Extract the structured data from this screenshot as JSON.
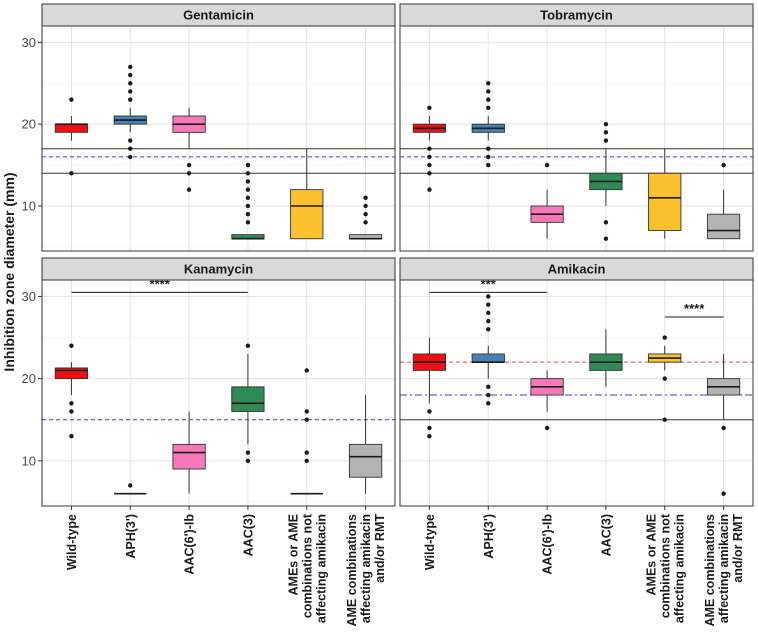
{
  "chart_data": {
    "type": "boxplot",
    "ylabel": "Inhibition zone diameter (mm)",
    "ylim": [
      4.5,
      32
    ],
    "yticks": [
      10,
      20,
      30
    ],
    "grid": true,
    "categories": [
      "Wild-type",
      "APH(3')",
      "AAC(6')-Ib",
      "AAC(3)",
      "AMEs or AME combinations not affecting amikacin",
      "AME combinations affecting amikacin and/or RMT"
    ],
    "category_label_lines": [
      [
        "Wild-type"
      ],
      [
        "APH(3')"
      ],
      [
        "AAC(6')-Ib"
      ],
      [
        "AAC(3)"
      ],
      [
        "AMEs or AME",
        "combinations not",
        "affecting amikacin"
      ],
      [
        "AME combinations",
        "affecting amikacin",
        "and/or RMT"
      ]
    ],
    "category_colors": [
      "#ee1111",
      "#4682b4",
      "#f778b8",
      "#2e8b57",
      "#fbc02d",
      "#b3b3b3"
    ],
    "panels": [
      {
        "title": "Gentamicin",
        "boxes": [
          {
            "category": "Wild-type",
            "q1": 19,
            "median": 20,
            "q3": 20,
            "low": 18,
            "high": 21,
            "outliers": [
              23,
              14
            ]
          },
          {
            "category": "APH(3')",
            "q1": 20,
            "median": 20.5,
            "q3": 21,
            "low": 19,
            "high": 22,
            "outliers": [
              27,
              26,
              25,
              24,
              23,
              18,
              17,
              16
            ]
          },
          {
            "category": "AAC(6')-Ib",
            "q1": 19,
            "median": 20,
            "q3": 21,
            "low": 17,
            "high": 22,
            "outliers": [
              15,
              14,
              12
            ]
          },
          {
            "category": "AAC(3)",
            "q1": 6,
            "median": 6,
            "q3": 6.5,
            "low": 6,
            "high": 6.5,
            "outliers": [
              15,
              14,
              13,
              12,
              11,
              10,
              9,
              8
            ]
          },
          {
            "category": "AMEs or AME combinations not affecting amikacin",
            "q1": 6,
            "median": 10,
            "q3": 12,
            "low": 6,
            "high": 17,
            "outliers": []
          },
          {
            "category": "AME combinations affecting amikacin and/or RMT",
            "q1": 6,
            "median": 6,
            "q3": 6.5,
            "low": 6,
            "high": 6.5,
            "outliers": [
              11,
              10,
              9,
              8
            ]
          }
        ],
        "ref_solid": [
          17,
          14
        ],
        "ref_blue_dashed": 16,
        "ref_red_dashed": null,
        "significance": []
      },
      {
        "title": "Tobramycin",
        "boxes": [
          {
            "category": "Wild-type",
            "q1": 19,
            "median": 19.5,
            "q3": 20,
            "low": 18,
            "high": 21,
            "outliers": [
              22,
              17,
              16,
              15,
              14,
              12
            ]
          },
          {
            "category": "APH(3')",
            "q1": 19,
            "median": 19.5,
            "q3": 20,
            "low": 18,
            "high": 21,
            "outliers": [
              25,
              24,
              23,
              22,
              17,
              16,
              15
            ]
          },
          {
            "category": "AAC(6')-Ib",
            "q1": 8,
            "median": 9,
            "q3": 10,
            "low": 6,
            "high": 12,
            "outliers": [
              15
            ]
          },
          {
            "category": "AAC(3)",
            "q1": 12,
            "median": 13,
            "q3": 14,
            "low": 10,
            "high": 17,
            "outliers": [
              20,
              19,
              18,
              8,
              6
            ]
          },
          {
            "category": "AMEs or AME combinations not affecting amikacin",
            "q1": 7,
            "median": 11,
            "q3": 14,
            "low": 6,
            "high": 17,
            "outliers": []
          },
          {
            "category": "AME combinations affecting amikacin and/or RMT",
            "q1": 6,
            "median": 7,
            "q3": 9,
            "low": 6,
            "high": 12,
            "outliers": [
              15
            ]
          }
        ],
        "ref_solid": [
          17,
          14
        ],
        "ref_blue_dashed": 16,
        "ref_red_dashed": null,
        "significance": []
      },
      {
        "title": "Kanamycin",
        "boxes": [
          {
            "category": "Wild-type",
            "q1": 20,
            "median": 21,
            "q3": 21.3,
            "low": 18,
            "high": 22,
            "outliers": [
              24,
              17,
              16,
              13
            ]
          },
          {
            "category": "APH(3')",
            "q1": 6,
            "median": 6,
            "q3": 6,
            "low": 6,
            "high": 6,
            "outliers": [
              7
            ]
          },
          {
            "category": "AAC(6')-Ib",
            "q1": 9,
            "median": 11,
            "q3": 12,
            "low": 6,
            "high": 16,
            "outliers": []
          },
          {
            "category": "AAC(3)",
            "q1": 16,
            "median": 17,
            "q3": 19,
            "low": 12,
            "high": 23,
            "outliers": [
              24,
              11,
              10
            ]
          },
          {
            "category": "AMEs or AME combinations not affecting amikacin",
            "q1": 6,
            "median": 6,
            "q3": 6,
            "low": 6,
            "high": 6,
            "outliers": [
              21,
              16,
              15,
              11,
              10
            ]
          },
          {
            "category": "AME combinations affecting amikacin and/or RMT",
            "q1": 8,
            "median": 10.5,
            "q3": 12,
            "low": 6,
            "high": 18,
            "outliers": []
          }
        ],
        "ref_solid": [],
        "ref_blue_dashed": 15,
        "ref_red_dashed": null,
        "significance": [
          {
            "from": "Wild-type",
            "to": "AAC(3)",
            "y": 30.5,
            "label": "****"
          }
        ]
      },
      {
        "title": "Amikacin",
        "boxes": [
          {
            "category": "Wild-type",
            "q1": 21,
            "median": 22,
            "q3": 23,
            "low": 17,
            "high": 25,
            "outliers": [
              16,
              14,
              13
            ]
          },
          {
            "category": "APH(3')",
            "q1": 22,
            "median": 22,
            "q3": 23,
            "low": 20,
            "high": 24,
            "outliers": [
              30,
              29,
              28,
              27,
              26,
              19,
              18,
              17
            ]
          },
          {
            "category": "AAC(6')-Ib",
            "q1": 18,
            "median": 19,
            "q3": 20,
            "low": 16,
            "high": 21,
            "outliers": [
              14
            ]
          },
          {
            "category": "AAC(3)",
            "q1": 21,
            "median": 22,
            "q3": 23,
            "low": 19,
            "high": 26,
            "outliers": []
          },
          {
            "category": "AMEs or AME combinations not affecting amikacin",
            "q1": 22,
            "median": 22.5,
            "q3": 23,
            "low": 21,
            "high": 24,
            "outliers": [
              25,
              20,
              15
            ]
          },
          {
            "category": "AME combinations affecting amikacin and/or RMT",
            "q1": 18,
            "median": 19,
            "q3": 20,
            "low": 15,
            "high": 23,
            "outliers": [
              14,
              6
            ]
          }
        ],
        "ref_solid": [
          15
        ],
        "ref_blue_dashed": 18,
        "ref_red_dashed": 22,
        "significance": [
          {
            "from": "Wild-type",
            "to": "AAC(6')-Ib",
            "y": 30.5,
            "label": "***"
          },
          {
            "from": "AMEs or AME combinations not affecting amikacin",
            "to": "AME combinations affecting amikacin and/or RMT",
            "y": 27.5,
            "label": "****"
          }
        ]
      }
    ]
  }
}
